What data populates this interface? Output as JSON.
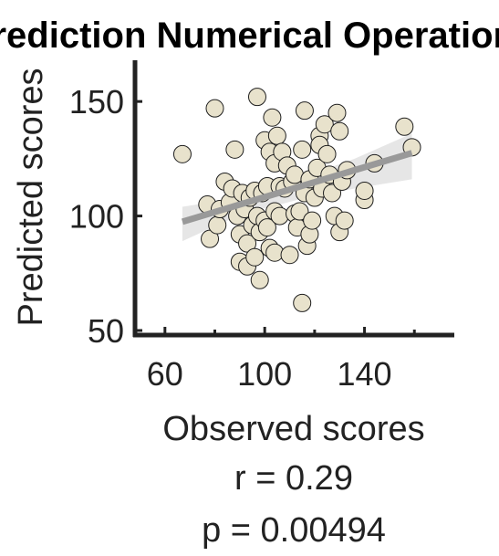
{
  "chart_data": {
    "type": "scatter",
    "title": "Prediction Numerical Operations",
    "xlabel": "Observed scores",
    "ylabel": "Predicted scores",
    "xlim": [
      48,
      176
    ],
    "ylim": [
      48,
      168
    ],
    "xticks": [
      60,
      100,
      140
    ],
    "yticks": [
      50,
      100,
      150
    ],
    "grid": false,
    "legend": "none",
    "stats": [
      "r = 0.29",
      "p = 0.00494"
    ],
    "colors": {
      "marker_fill": "#e8e2cc",
      "marker_edge": "#1f1f1f",
      "fit_line": "#999999",
      "ci_band": "#e6e6e6",
      "axis": "#222222"
    },
    "fit_line": {
      "x": [
        67,
        159
      ],
      "y": [
        97.5,
        127.5
      ]
    },
    "ci_band": {
      "x": [
        67,
        90,
        113,
        136,
        159
      ],
      "upper": [
        104,
        108,
        116,
        125,
        136
      ],
      "lower": [
        89,
        100.5,
        107,
        112,
        116
      ]
    },
    "points": [
      {
        "x": 67,
        "y": 127
      },
      {
        "x": 77,
        "y": 105
      },
      {
        "x": 78,
        "y": 90
      },
      {
        "x": 80,
        "y": 147
      },
      {
        "x": 81,
        "y": 96
      },
      {
        "x": 82,
        "y": 103
      },
      {
        "x": 84,
        "y": 115
      },
      {
        "x": 86,
        "y": 106
      },
      {
        "x": 87,
        "y": 112
      },
      {
        "x": 88,
        "y": 129
      },
      {
        "x": 89,
        "y": 100
      },
      {
        "x": 90,
        "y": 80
      },
      {
        "x": 90,
        "y": 92
      },
      {
        "x": 91,
        "y": 110
      },
      {
        "x": 92,
        "y": 103
      },
      {
        "x": 93,
        "y": 88
      },
      {
        "x": 93,
        "y": 78
      },
      {
        "x": 94,
        "y": 108
      },
      {
        "x": 95,
        "y": 96
      },
      {
        "x": 96,
        "y": 82
      },
      {
        "x": 96,
        "y": 111
      },
      {
        "x": 97,
        "y": 100
      },
      {
        "x": 97,
        "y": 152
      },
      {
        "x": 98,
        "y": 72
      },
      {
        "x": 98,
        "y": 93
      },
      {
        "x": 99,
        "y": 110
      },
      {
        "x": 100,
        "y": 98
      },
      {
        "x": 100,
        "y": 133
      },
      {
        "x": 101,
        "y": 113
      },
      {
        "x": 101,
        "y": 95
      },
      {
        "x": 102,
        "y": 128
      },
      {
        "x": 102,
        "y": 86
      },
      {
        "x": 103,
        "y": 143
      },
      {
        "x": 104,
        "y": 102
      },
      {
        "x": 104,
        "y": 123
      },
      {
        "x": 104,
        "y": 84
      },
      {
        "x": 105,
        "y": 135
      },
      {
        "x": 106,
        "y": 100
      },
      {
        "x": 106,
        "y": 113
      },
      {
        "x": 107,
        "y": 128
      },
      {
        "x": 108,
        "y": 112
      },
      {
        "x": 109,
        "y": 122
      },
      {
        "x": 110,
        "y": 83
      },
      {
        "x": 111,
        "y": 115
      },
      {
        "x": 112,
        "y": 101
      },
      {
        "x": 112,
        "y": 118
      },
      {
        "x": 113,
        "y": 95
      },
      {
        "x": 114,
        "y": 102
      },
      {
        "x": 115,
        "y": 62
      },
      {
        "x": 115,
        "y": 129
      },
      {
        "x": 116,
        "y": 146
      },
      {
        "x": 116,
        "y": 110
      },
      {
        "x": 117,
        "y": 87
      },
      {
        "x": 118,
        "y": 92
      },
      {
        "x": 118,
        "y": 116
      },
      {
        "x": 119,
        "y": 98
      },
      {
        "x": 120,
        "y": 108
      },
      {
        "x": 121,
        "y": 121
      },
      {
        "x": 122,
        "y": 135
      },
      {
        "x": 122,
        "y": 131
      },
      {
        "x": 123,
        "y": 112
      },
      {
        "x": 124,
        "y": 140
      },
      {
        "x": 125,
        "y": 127
      },
      {
        "x": 126,
        "y": 118
      },
      {
        "x": 127,
        "y": 110
      },
      {
        "x": 128,
        "y": 100
      },
      {
        "x": 129,
        "y": 145
      },
      {
        "x": 130,
        "y": 137
      },
      {
        "x": 130,
        "y": 93
      },
      {
        "x": 131,
        "y": 115
      },
      {
        "x": 132,
        "y": 98
      },
      {
        "x": 133,
        "y": 120
      },
      {
        "x": 140,
        "y": 107
      },
      {
        "x": 140,
        "y": 111
      },
      {
        "x": 144,
        "y": 123
      },
      {
        "x": 156,
        "y": 139
      },
      {
        "x": 159,
        "y": 130
      }
    ]
  }
}
